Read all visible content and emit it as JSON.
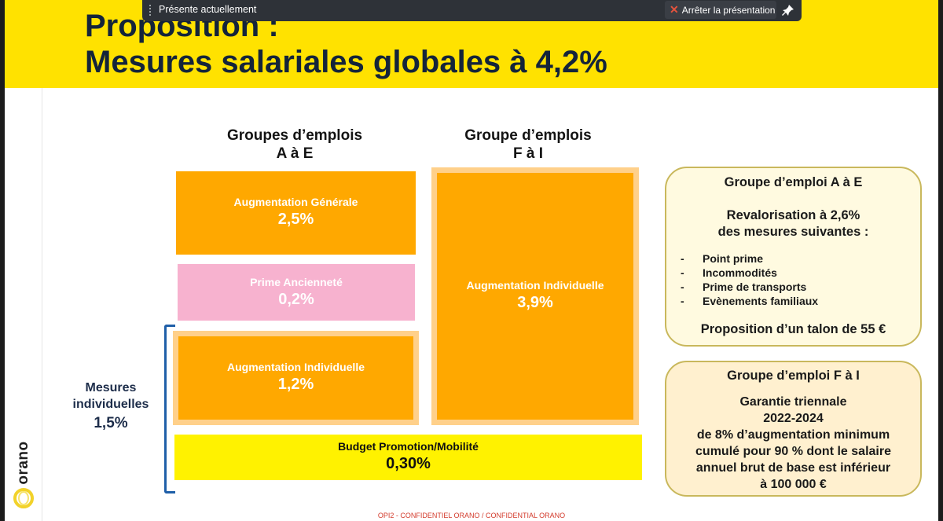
{
  "presenter_bar": {
    "status": "Présente actuellement",
    "stop_label": "Arrêter la présentation",
    "stop_icon": "close-icon",
    "pin_icon": "pin-icon"
  },
  "slide": {
    "title_line1": "Proposition :",
    "title_line2": "Mesures salariales globales à 4,2%",
    "logo_text": "orano",
    "col1_heading_line1": "Groupes d’emplois",
    "col1_heading_line2": "A à E",
    "col2_heading_line1": "Groupe d’emplois",
    "col2_heading_line2": "F à I",
    "boxes": {
      "ag_ae_label": "Augmentation Générale",
      "ag_ae_value": "2,5%",
      "prime_label": "Prime Ancienneté",
      "prime_value": "0,2%",
      "ai_ae_label": "Augmentation Individuelle",
      "ai_ae_value": "1,2%",
      "ai_fi_label": "Augmentation Individuelle",
      "ai_fi_value": "3,9%",
      "budget_label": "Budget Promotion/Mobilité",
      "budget_value": "0,30%"
    },
    "mesures_line1": "Mesures",
    "mesures_line2": "individuelles",
    "mesures_value": "1,5%",
    "panel_ae": {
      "heading": "Groupe d’emploi A à E",
      "reval_line1": "Revalorisation à 2,6%",
      "reval_line2": "des mesures suivantes  :",
      "items": [
        "Point prime",
        "Incommodités",
        "Prime de transports",
        "Evènements familiaux"
      ],
      "dash": "-",
      "talon": "Proposition d’un talon de 55 €"
    },
    "panel_fi": {
      "heading": "Groupe d’emploi F à I",
      "line1": "Garantie triennale",
      "line2": "2022-2024",
      "line3": "de 8% d’augmentation minimum",
      "line4": "cumulé pour 90 % dont le salaire",
      "line5": "annuel brut de base est inférieur",
      "line6": "à 100 000 €"
    },
    "footer": "OPI2 - CONFIDENTIEL ORANO / CONFIDENTIAL ORANO"
  },
  "colors": {
    "header_yellow": "#ffe200",
    "orange": "#ffa800",
    "pink": "#f7b2cf",
    "budget_yellow": "#fff200",
    "bracket_blue": "#1f5fa8"
  }
}
